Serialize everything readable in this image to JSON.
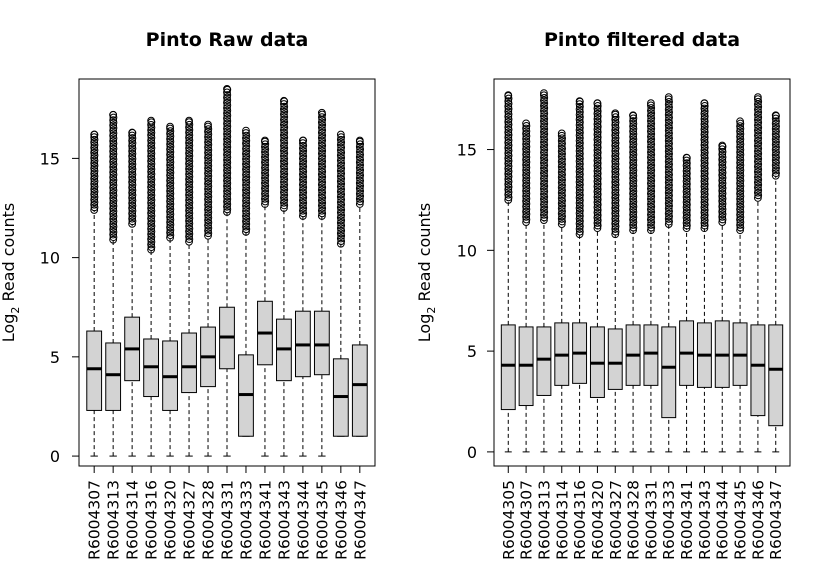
{
  "chart_data": [
    {
      "type": "box",
      "title": "Pinto Raw data",
      "ylabel_main": "Log",
      "ylabel_sub": "2",
      "ylabel_rest": " Read counts",
      "ylim": [
        -0.5,
        19
      ],
      "yticks": [
        0,
        5,
        10,
        15
      ],
      "box_fill": "#d3d3d3",
      "categories": [
        "R6004307",
        "R6004313",
        "R6004314",
        "R6004316",
        "R6004320",
        "R6004327",
        "R6004328",
        "R6004331",
        "R6004333",
        "R6004341",
        "R6004343",
        "R6004344",
        "R6004345",
        "R6004346",
        "R6004347"
      ],
      "boxes": [
        {
          "min": 0,
          "q1": 2.3,
          "median": 4.4,
          "q3": 6.3,
          "whisker_hi": 12.4,
          "outliers_from": 12.4,
          "outliers_to": 16.2
        },
        {
          "min": 0,
          "q1": 2.3,
          "median": 4.1,
          "q3": 5.7,
          "whisker_hi": 10.9,
          "outliers_from": 10.9,
          "outliers_to": 17.2
        },
        {
          "min": 0,
          "q1": 3.8,
          "median": 5.4,
          "q3": 7.0,
          "whisker_hi": 11.7,
          "outliers_from": 11.7,
          "outliers_to": 16.3
        },
        {
          "min": 0,
          "q1": 3.0,
          "median": 4.5,
          "q3": 5.9,
          "whisker_hi": 10.4,
          "outliers_from": 10.4,
          "outliers_to": 16.9
        },
        {
          "min": 0,
          "q1": 2.3,
          "median": 4.0,
          "q3": 5.8,
          "whisker_hi": 11.0,
          "outliers_from": 11.0,
          "outliers_to": 16.6
        },
        {
          "min": 0,
          "q1": 3.2,
          "median": 4.5,
          "q3": 6.2,
          "whisker_hi": 10.8,
          "outliers_from": 10.8,
          "outliers_to": 16.9
        },
        {
          "min": 0,
          "q1": 3.5,
          "median": 5.0,
          "q3": 6.5,
          "whisker_hi": 11.1,
          "outliers_from": 11.1,
          "outliers_to": 16.7
        },
        {
          "min": 0,
          "q1": 4.4,
          "median": 6.0,
          "q3": 7.5,
          "whisker_hi": 12.3,
          "outliers_from": 12.3,
          "outliers_to": 18.5
        },
        {
          "min": 1.0,
          "q1": 1.0,
          "median": 3.1,
          "q3": 5.1,
          "whisker_hi": 11.3,
          "outliers_from": 11.3,
          "outliers_to": 16.4
        },
        {
          "min": 0,
          "q1": 4.6,
          "median": 6.2,
          "q3": 7.8,
          "whisker_hi": 12.7,
          "outliers_from": 12.7,
          "outliers_to": 15.9
        },
        {
          "min": 0,
          "q1": 3.8,
          "median": 5.4,
          "q3": 6.9,
          "whisker_hi": 12.5,
          "outliers_from": 12.5,
          "outliers_to": 17.9
        },
        {
          "min": 0,
          "q1": 4.0,
          "median": 5.6,
          "q3": 7.3,
          "whisker_hi": 12.1,
          "outliers_from": 12.1,
          "outliers_to": 15.9
        },
        {
          "min": 0,
          "q1": 4.1,
          "median": 5.6,
          "q3": 7.3,
          "whisker_hi": 12.1,
          "outliers_from": 12.1,
          "outliers_to": 17.3
        },
        {
          "min": 1.0,
          "q1": 1.0,
          "median": 3.0,
          "q3": 4.9,
          "whisker_hi": 10.7,
          "outliers_from": 10.7,
          "outliers_to": 16.2
        },
        {
          "min": 1.0,
          "q1": 1.0,
          "median": 3.6,
          "q3": 5.6,
          "whisker_hi": 12.7,
          "outliers_from": 12.7,
          "outliers_to": 15.9
        }
      ]
    },
    {
      "type": "box",
      "title": "Pinto filtered data",
      "ylabel_main": "Log",
      "ylabel_sub": "2",
      "ylabel_rest": " Read counts",
      "ylim": [
        -0.7,
        18.5
      ],
      "yticks": [
        0,
        5,
        10,
        15
      ],
      "box_fill": "#d3d3d3",
      "categories": [
        "R6004305",
        "R6004307",
        "R6004313",
        "R6004314",
        "R6004316",
        "R6004320",
        "R6004327",
        "R6004328",
        "R6004331",
        "R6004333",
        "R6004341",
        "R6004343",
        "R6004344",
        "R6004345",
        "R6004346",
        "R6004347"
      ],
      "boxes": [
        {
          "min": 0,
          "q1": 2.1,
          "median": 4.3,
          "q3": 6.3,
          "whisker_hi": 12.5,
          "outliers_from": 12.5,
          "outliers_to": 17.7
        },
        {
          "min": 0,
          "q1": 2.3,
          "median": 4.3,
          "q3": 6.2,
          "whisker_hi": 11.4,
          "outliers_from": 11.4,
          "outliers_to": 16.3
        },
        {
          "min": 0,
          "q1": 2.8,
          "median": 4.6,
          "q3": 6.2,
          "whisker_hi": 11.5,
          "outliers_from": 11.5,
          "outliers_to": 17.8
        },
        {
          "min": 0,
          "q1": 3.3,
          "median": 4.8,
          "q3": 6.4,
          "whisker_hi": 11.3,
          "outliers_from": 11.3,
          "outliers_to": 15.8
        },
        {
          "min": 0,
          "q1": 3.4,
          "median": 4.9,
          "q3": 6.4,
          "whisker_hi": 10.8,
          "outliers_from": 10.8,
          "outliers_to": 17.4
        },
        {
          "min": 0,
          "q1": 2.7,
          "median": 4.4,
          "q3": 6.2,
          "whisker_hi": 11.1,
          "outliers_from": 11.1,
          "outliers_to": 17.3
        },
        {
          "min": 0,
          "q1": 3.1,
          "median": 4.4,
          "q3": 6.1,
          "whisker_hi": 10.8,
          "outliers_from": 10.8,
          "outliers_to": 16.8
        },
        {
          "min": 0,
          "q1": 3.3,
          "median": 4.8,
          "q3": 6.3,
          "whisker_hi": 11.0,
          "outliers_from": 11.0,
          "outliers_to": 16.7
        },
        {
          "min": 0,
          "q1": 3.3,
          "median": 4.9,
          "q3": 6.3,
          "whisker_hi": 11.0,
          "outliers_from": 11.0,
          "outliers_to": 17.3
        },
        {
          "min": 0,
          "q1": 1.7,
          "median": 4.2,
          "q3": 6.2,
          "whisker_hi": 11.3,
          "outliers_from": 11.3,
          "outliers_to": 17.6
        },
        {
          "min": 0,
          "q1": 3.3,
          "median": 4.9,
          "q3": 6.5,
          "whisker_hi": 11.1,
          "outliers_from": 11.1,
          "outliers_to": 14.6
        },
        {
          "min": 0,
          "q1": 3.2,
          "median": 4.8,
          "q3": 6.4,
          "whisker_hi": 11.1,
          "outliers_from": 11.1,
          "outliers_to": 17.3
        },
        {
          "min": 0,
          "q1": 3.2,
          "median": 4.8,
          "q3": 6.5,
          "whisker_hi": 11.4,
          "outliers_from": 11.4,
          "outliers_to": 15.2
        },
        {
          "min": 0,
          "q1": 3.3,
          "median": 4.8,
          "q3": 6.4,
          "whisker_hi": 11.0,
          "outliers_from": 11.0,
          "outliers_to": 16.4
        },
        {
          "min": 0,
          "q1": 1.8,
          "median": 4.3,
          "q3": 6.3,
          "whisker_hi": 12.6,
          "outliers_from": 12.6,
          "outliers_to": 17.6
        },
        {
          "min": 0,
          "q1": 1.3,
          "median": 4.1,
          "q3": 6.3,
          "whisker_hi": 13.7,
          "outliers_from": 13.7,
          "outliers_to": 16.7
        }
      ]
    }
  ]
}
